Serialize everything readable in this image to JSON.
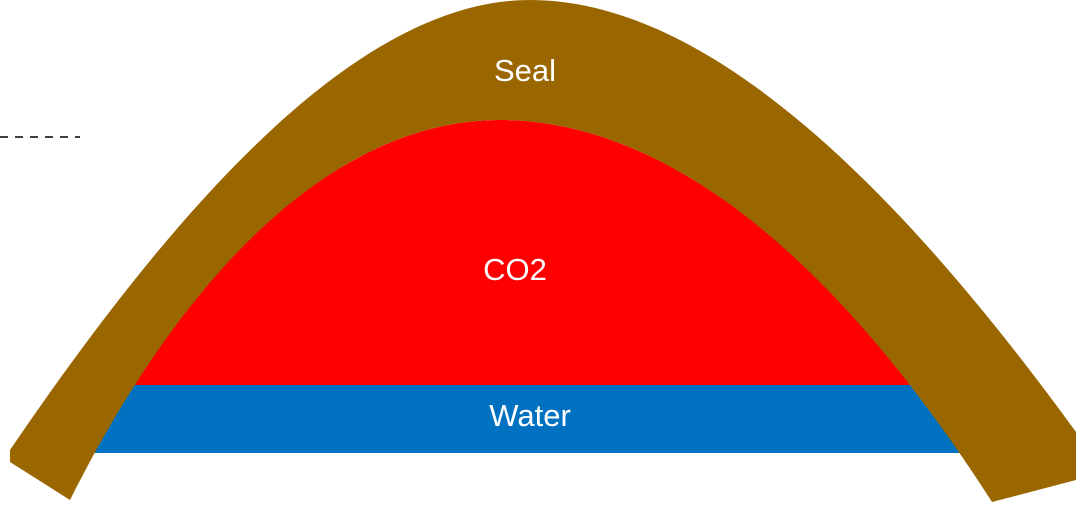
{
  "labels": {
    "seal": "Seal",
    "co2": "CO2",
    "water": "Water"
  }
}
